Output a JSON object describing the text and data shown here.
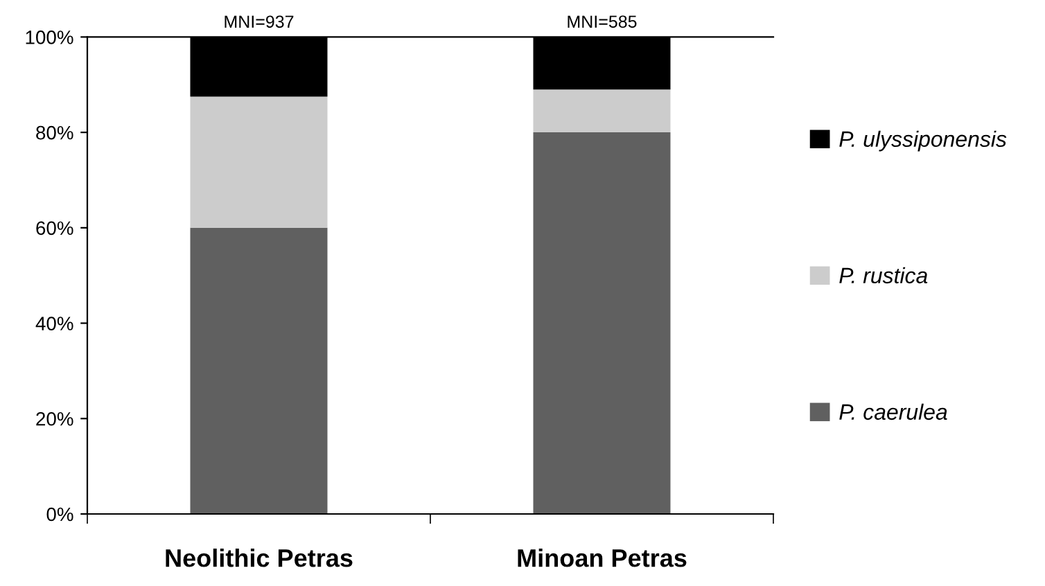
{
  "chart_data": {
    "type": "bar",
    "stacked": true,
    "categories": [
      "Neolithic Petras",
      "Minoan Petras"
    ],
    "series": [
      {
        "name": "P. caerulea",
        "color": "#606060",
        "values": [
          60,
          80
        ]
      },
      {
        "name": "P. rustica",
        "color": "#cccccc",
        "values": [
          27.5,
          9
        ]
      },
      {
        "name": "P. ulyssiponensis",
        "color": "#000000",
        "values": [
          12.5,
          11
        ]
      }
    ],
    "ylim": [
      0,
      100
    ],
    "yticks": [
      {
        "value": 0,
        "label": "0%"
      },
      {
        "value": 20,
        "label": "20%"
      },
      {
        "value": 40,
        "label": "40%"
      },
      {
        "value": 60,
        "label": "60%"
      },
      {
        "value": 80,
        "label": "80%"
      },
      {
        "value": 100,
        "label": "100%"
      }
    ],
    "annotations": [
      {
        "text": "MNI=937",
        "x": "Neolithic Petras",
        "y": 100
      },
      {
        "text": "MNI=585",
        "x": "Minoan Petras",
        "y": 100
      }
    ],
    "grid": false,
    "legend": "right"
  }
}
